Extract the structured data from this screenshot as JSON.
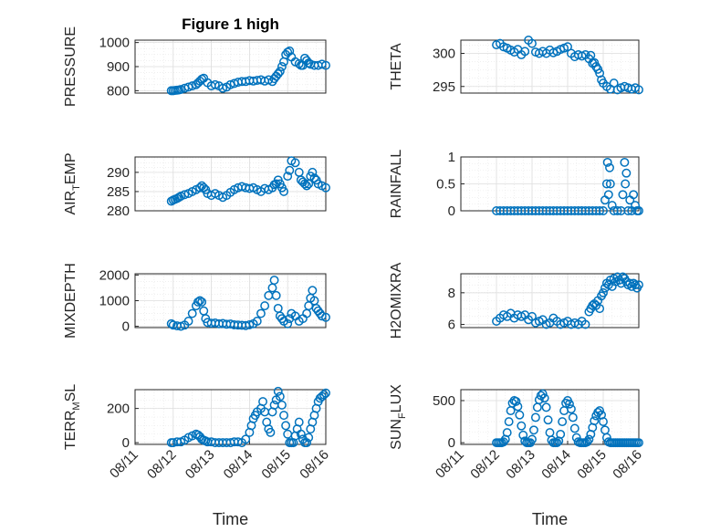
{
  "figure": {
    "title": "Figure 1 high",
    "marker_color": "#0072BD"
  },
  "chart_data": [
    {
      "id": "pressure",
      "type": "scatter",
      "ylabel": "PRESSURE",
      "ylabel_sub": "",
      "ylabel_end": "",
      "xlabel": "",
      "title": "Figure 1 high",
      "xlim": [
        0,
        5
      ],
      "ylim": [
        790,
        1010
      ],
      "yticks": [
        800,
        900,
        1000
      ],
      "ytick_labels": [
        "800",
        "900",
        "1000"
      ],
      "xticks": [],
      "xtick_labels": [],
      "x": [
        0.95,
        1.0,
        1.05,
        1.1,
        1.15,
        1.2,
        1.3,
        1.4,
        1.5,
        1.6,
        1.65,
        1.7,
        1.75,
        1.8,
        1.9,
        2.0,
        2.1,
        2.2,
        2.3,
        2.4,
        2.5,
        2.6,
        2.7,
        2.8,
        2.9,
        3.0,
        3.1,
        3.2,
        3.3,
        3.4,
        3.5,
        3.6,
        3.65,
        3.7,
        3.75,
        3.8,
        3.85,
        3.9,
        3.95,
        4.0,
        4.05,
        4.1,
        4.2,
        4.3,
        4.35,
        4.4,
        4.45,
        4.5,
        4.55,
        4.6,
        4.7,
        4.8,
        4.9,
        5.0
      ],
      "y": [
        800,
        800,
        801,
        802,
        803,
        805,
        810,
        815,
        820,
        825,
        832,
        840,
        848,
        852,
        833,
        820,
        825,
        820,
        810,
        815,
        825,
        830,
        835,
        838,
        838,
        842,
        840,
        843,
        845,
        840,
        845,
        838,
        850,
        860,
        870,
        880,
        900,
        920,
        950,
        960,
        965,
        940,
        920,
        912,
        905,
        905,
        935,
        925,
        915,
        910,
        905,
        905,
        910,
        905
      ]
    },
    {
      "id": "theta",
      "type": "scatter",
      "ylabel": "THETA",
      "ylabel_sub": "",
      "ylabel_end": "",
      "xlabel": "",
      "title": "",
      "xlim": [
        0,
        5
      ],
      "ylim": [
        294,
        302
      ],
      "yticks": [
        295,
        300
      ],
      "ytick_labels": [
        "295",
        "300"
      ],
      "xticks": [],
      "xtick_labels": [],
      "x": [
        1.0,
        1.1,
        1.2,
        1.3,
        1.4,
        1.5,
        1.6,
        1.7,
        1.8,
        1.9,
        2.0,
        2.1,
        2.2,
        2.3,
        2.4,
        2.5,
        2.6,
        2.7,
        2.8,
        2.9,
        3.0,
        3.1,
        3.2,
        3.3,
        3.4,
        3.5,
        3.6,
        3.65,
        3.7,
        3.75,
        3.8,
        3.85,
        3.9,
        3.95,
        4.0,
        4.1,
        4.2,
        4.3,
        4.4,
        4.5,
        4.6,
        4.7,
        4.8,
        4.9,
        5.0
      ],
      "y": [
        301.3,
        301.5,
        301.0,
        300.8,
        300.5,
        300.2,
        300.6,
        299.8,
        300.3,
        302.0,
        301.5,
        300.2,
        300.0,
        300.3,
        300.0,
        300.5,
        300.1,
        300.3,
        300.6,
        300.8,
        301.0,
        300.0,
        299.5,
        299.8,
        299.6,
        299.8,
        299.2,
        299.7,
        298.5,
        298.6,
        298.0,
        297.6,
        297.0,
        296.0,
        295.5,
        295.0,
        294.6,
        295.5,
        294.5,
        294.8,
        295.0,
        294.8,
        294.6,
        294.8,
        294.5
      ]
    },
    {
      "id": "air_temp",
      "type": "scatter",
      "ylabel": "AIR",
      "ylabel_sub": "T",
      "ylabel_end": "EMP",
      "xlabel": "",
      "title": "",
      "xlim": [
        0,
        5
      ],
      "ylim": [
        280,
        294
      ],
      "yticks": [
        280,
        285,
        290
      ],
      "ytick_labels": [
        "280",
        "285",
        "290"
      ],
      "xticks": [],
      "xtick_labels": [],
      "x": [
        0.95,
        1.0,
        1.05,
        1.1,
        1.15,
        1.2,
        1.3,
        1.4,
        1.5,
        1.6,
        1.7,
        1.75,
        1.8,
        1.85,
        1.9,
        2.0,
        2.1,
        2.2,
        2.3,
        2.4,
        2.5,
        2.6,
        2.7,
        2.8,
        2.9,
        3.0,
        3.1,
        3.2,
        3.3,
        3.4,
        3.5,
        3.6,
        3.65,
        3.7,
        3.75,
        3.8,
        3.85,
        3.9,
        4.0,
        4.05,
        4.1,
        4.2,
        4.3,
        4.35,
        4.4,
        4.45,
        4.5,
        4.55,
        4.6,
        4.65,
        4.7,
        4.75,
        4.8,
        4.9,
        5.0
      ],
      "y": [
        282.5,
        282.8,
        283.0,
        283.2,
        283.5,
        283.8,
        284.2,
        284.5,
        285.0,
        285.5,
        286.0,
        286.5,
        286.0,
        285.5,
        284.5,
        284.0,
        284.5,
        284.0,
        283.5,
        284.0,
        284.8,
        285.5,
        286.0,
        286.3,
        286.0,
        285.8,
        286.0,
        285.5,
        285.0,
        285.8,
        285.5,
        286.0,
        286.8,
        287.0,
        288.0,
        287.0,
        286.0,
        285.0,
        289.0,
        290.5,
        293.0,
        292.5,
        290.0,
        288.0,
        287.5,
        287.0,
        286.5,
        287.0,
        289.0,
        290.0,
        288.5,
        288.0,
        287.0,
        286.5,
        286.0
      ]
    },
    {
      "id": "rainfall",
      "type": "scatter",
      "ylabel": "RAINFALL",
      "ylabel_sub": "",
      "ylabel_end": "",
      "xlabel": "",
      "title": "",
      "xlim": [
        0,
        5
      ],
      "ylim": [
        0,
        1
      ],
      "yticks": [
        0,
        0.5,
        1
      ],
      "ytick_labels": [
        "0",
        "0.5",
        "1"
      ],
      "xticks": [],
      "xtick_labels": [],
      "x": [
        1.0,
        1.1,
        1.2,
        1.3,
        1.4,
        1.5,
        1.6,
        1.7,
        1.8,
        1.9,
        2.0,
        2.1,
        2.2,
        2.3,
        2.4,
        2.5,
        2.6,
        2.7,
        2.8,
        2.9,
        3.0,
        3.1,
        3.2,
        3.3,
        3.4,
        3.5,
        3.6,
        3.7,
        3.8,
        3.9,
        4.0,
        4.05,
        4.1,
        4.12,
        4.15,
        4.18,
        4.2,
        4.25,
        4.3,
        4.4,
        4.5,
        4.55,
        4.6,
        4.62,
        4.65,
        4.7,
        4.75,
        4.8,
        4.85,
        4.9,
        4.95,
        5.0
      ],
      "y": [
        0,
        0,
        0,
        0,
        0,
        0,
        0,
        0,
        0,
        0,
        0,
        0,
        0,
        0,
        0,
        0,
        0,
        0,
        0,
        0,
        0,
        0,
        0,
        0,
        0,
        0,
        0,
        0,
        0,
        0,
        0,
        0.2,
        0.5,
        0.9,
        0.3,
        0.8,
        0.5,
        0.1,
        0,
        0,
        0,
        0.3,
        0.9,
        0.5,
        0.7,
        0,
        0.2,
        0,
        0.3,
        0.1,
        0,
        0
      ]
    },
    {
      "id": "mixdepth",
      "type": "scatter",
      "ylabel": "MIXDEPTH",
      "ylabel_sub": "",
      "ylabel_end": "",
      "xlabel": "",
      "title": "",
      "xlim": [
        0,
        5
      ],
      "ylim": [
        -50,
        2050
      ],
      "yticks": [
        0,
        1000,
        2000
      ],
      "ytick_labels": [
        "0",
        "1000",
        "2000"
      ],
      "xticks": [],
      "xtick_labels": [],
      "x": [
        0.95,
        1.0,
        1.1,
        1.2,
        1.3,
        1.4,
        1.5,
        1.6,
        1.65,
        1.7,
        1.75,
        1.8,
        1.85,
        1.9,
        2.0,
        2.1,
        2.2,
        2.3,
        2.4,
        2.5,
        2.6,
        2.7,
        2.8,
        2.9,
        3.0,
        3.1,
        3.2,
        3.3,
        3.4,
        3.5,
        3.6,
        3.65,
        3.7,
        3.75,
        3.8,
        3.85,
        3.9,
        4.0,
        4.05,
        4.1,
        4.2,
        4.3,
        4.4,
        4.5,
        4.55,
        4.6,
        4.65,
        4.7,
        4.75,
        4.8,
        4.85,
        4.9,
        5.0
      ],
      "y": [
        100,
        50,
        20,
        0,
        50,
        200,
        500,
        800,
        950,
        1000,
        950,
        600,
        300,
        150,
        120,
        130,
        100,
        110,
        80,
        90,
        60,
        50,
        40,
        30,
        60,
        100,
        200,
        500,
        800,
        1200,
        1500,
        1800,
        1200,
        700,
        400,
        300,
        200,
        100,
        300,
        500,
        400,
        200,
        300,
        500,
        800,
        1100,
        1400,
        1000,
        700,
        600,
        500,
        400,
        350
      ]
    },
    {
      "id": "h2omixra",
      "type": "scatter",
      "ylabel": "H2OMIXRA",
      "ylabel_sub": "",
      "ylabel_end": "",
      "xlabel": "",
      "title": "",
      "xlim": [
        0,
        5
      ],
      "ylim": [
        5.8,
        9.2
      ],
      "yticks": [
        6,
        8
      ],
      "ytick_labels": [
        "6",
        "8"
      ],
      "xticks": [],
      "xtick_labels": [],
      "x": [
        1.0,
        1.1,
        1.2,
        1.3,
        1.4,
        1.5,
        1.6,
        1.7,
        1.8,
        1.9,
        2.0,
        2.1,
        2.2,
        2.3,
        2.4,
        2.5,
        2.6,
        2.7,
        2.8,
        2.9,
        3.0,
        3.1,
        3.2,
        3.3,
        3.4,
        3.5,
        3.6,
        3.65,
        3.7,
        3.75,
        3.8,
        3.85,
        3.9,
        3.95,
        4.0,
        4.05,
        4.1,
        4.15,
        4.2,
        4.25,
        4.3,
        4.35,
        4.4,
        4.45,
        4.5,
        4.55,
        4.6,
        4.65,
        4.7,
        4.75,
        4.8,
        4.85,
        4.9,
        4.95,
        5.0
      ],
      "y": [
        6.2,
        6.4,
        6.6,
        6.5,
        6.7,
        6.4,
        6.6,
        6.5,
        6.6,
        6.3,
        6.5,
        6.1,
        6.2,
        6.3,
        6.0,
        6.1,
        6.4,
        6.2,
        6.0,
        6.1,
        6.2,
        6.0,
        6.1,
        6.0,
        6.2,
        6.0,
        6.8,
        7.0,
        7.2,
        7.3,
        7.2,
        7.5,
        7.0,
        7.8,
        8.0,
        8.3,
        8.6,
        8.5,
        8.8,
        8.4,
        8.9,
        8.7,
        9.0,
        8.8,
        8.6,
        9.0,
        8.9,
        8.7,
        8.5,
        8.6,
        8.4,
        8.6,
        8.5,
        8.3,
        8.5
      ]
    },
    {
      "id": "terr_msl",
      "type": "scatter",
      "ylabel": "TERR",
      "ylabel_sub": "M",
      "ylabel_end": "SL",
      "xlabel": "Time",
      "title": "",
      "xlim": [
        0,
        5
      ],
      "ylim": [
        -10,
        310
      ],
      "yticks": [
        0,
        200
      ],
      "ytick_labels": [
        "0",
        "200"
      ],
      "xticks": [
        0,
        1,
        2,
        3,
        4,
        5
      ],
      "xtick_labels": [
        "08/11",
        "08/12",
        "08/13",
        "08/14",
        "08/15",
        "08/16"
      ],
      "x": [
        0.95,
        1.0,
        1.1,
        1.2,
        1.3,
        1.4,
        1.5,
        1.6,
        1.65,
        1.7,
        1.75,
        1.8,
        1.85,
        1.9,
        2.0,
        2.1,
        2.2,
        2.3,
        2.4,
        2.5,
        2.6,
        2.7,
        2.8,
        2.9,
        3.0,
        3.05,
        3.1,
        3.15,
        3.2,
        3.3,
        3.35,
        3.4,
        3.45,
        3.5,
        3.55,
        3.6,
        3.65,
        3.7,
        3.75,
        3.8,
        3.85,
        3.9,
        3.95,
        4.0,
        4.05,
        4.1,
        4.15,
        4.2,
        4.25,
        4.3,
        4.35,
        4.4,
        4.45,
        4.5,
        4.55,
        4.6,
        4.65,
        4.7,
        4.75,
        4.8,
        4.85,
        4.9,
        4.95,
        5.0
      ],
      "y": [
        0,
        0,
        5,
        5,
        15,
        30,
        40,
        50,
        45,
        35,
        20,
        15,
        10,
        5,
        5,
        0,
        0,
        0,
        0,
        0,
        5,
        5,
        0,
        20,
        60,
        100,
        140,
        160,
        180,
        200,
        240,
        180,
        120,
        80,
        60,
        180,
        220,
        250,
        300,
        270,
        220,
        160,
        100,
        50,
        0,
        0,
        0,
        40,
        80,
        120,
        50,
        20,
        0,
        0,
        30,
        80,
        120,
        160,
        200,
        240,
        260,
        270,
        280,
        290
      ]
    },
    {
      "id": "sun_flux",
      "type": "scatter",
      "ylabel": "SUN",
      "ylabel_sub": "F",
      "ylabel_end": "LUX",
      "xlabel": "Time",
      "title": "",
      "xlim": [
        0,
        5
      ],
      "ylim": [
        -20,
        630
      ],
      "yticks": [
        0,
        500
      ],
      "ytick_labels": [
        "0",
        "500"
      ],
      "xticks": [
        0,
        1,
        2,
        3,
        4,
        5
      ],
      "xtick_labels": [
        "08/11",
        "08/12",
        "08/13",
        "08/14",
        "08/15",
        "08/16"
      ],
      "x": [
        1.0,
        1.05,
        1.1,
        1.15,
        1.2,
        1.25,
        1.3,
        1.35,
        1.4,
        1.45,
        1.5,
        1.55,
        1.6,
        1.65,
        1.7,
        1.75,
        1.8,
        1.85,
        1.9,
        1.95,
        2.0,
        2.05,
        2.1,
        2.15,
        2.2,
        2.25,
        2.3,
        2.35,
        2.4,
        2.45,
        2.5,
        2.55,
        2.6,
        2.65,
        2.7,
        2.75,
        2.8,
        2.85,
        2.9,
        2.95,
        3.0,
        3.05,
        3.1,
        3.15,
        3.2,
        3.25,
        3.3,
        3.35,
        3.4,
        3.45,
        3.5,
        3.55,
        3.6,
        3.65,
        3.7,
        3.75,
        3.8,
        3.85,
        3.9,
        3.95,
        4.0,
        4.05,
        4.1,
        4.15,
        4.2,
        4.25,
        4.3,
        4.35,
        4.4,
        4.45,
        4.5,
        4.55,
        4.6,
        4.65,
        4.7,
        4.75,
        4.8,
        4.85,
        4.9,
        4.95,
        5.0
      ],
      "y": [
        0,
        0,
        0,
        0,
        10,
        40,
        120,
        250,
        380,
        470,
        500,
        490,
        430,
        330,
        200,
        90,
        20,
        0,
        0,
        0,
        40,
        150,
        300,
        420,
        510,
        560,
        580,
        530,
        420,
        270,
        120,
        30,
        0,
        0,
        0,
        20,
        100,
        250,
        380,
        470,
        500,
        460,
        400,
        300,
        170,
        60,
        10,
        0,
        0,
        0,
        0,
        10,
        40,
        100,
        180,
        260,
        320,
        360,
        380,
        330,
        250,
        150,
        60,
        10,
        0,
        0,
        0,
        0,
        0,
        0,
        0,
        0,
        0,
        0,
        0,
        0,
        0,
        0,
        0,
        0,
        0
      ]
    }
  ]
}
